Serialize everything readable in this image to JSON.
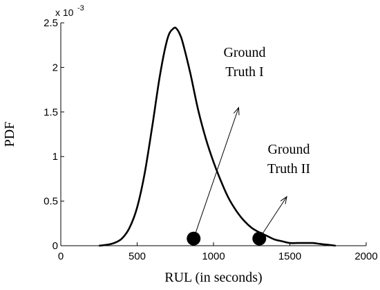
{
  "chart_data": {
    "type": "line",
    "xlabel": "RUL (in seconds)",
    "ylabel": "PDF",
    "y_scale_label": "x 10",
    "y_scale_exponent": "-3",
    "xlim": [
      0,
      2000
    ],
    "ylim": [
      0,
      2.5
    ],
    "xticks": [
      0,
      500,
      1000,
      1500,
      2000
    ],
    "yticks": [
      0,
      0.5,
      1,
      1.5,
      2,
      2.5
    ],
    "xtick_labels": [
      "0",
      "500",
      "1000",
      "1500",
      "2000"
    ],
    "ytick_labels": [
      "0",
      "0.5",
      "1",
      "1.5",
      "2",
      "2.5"
    ],
    "grid": false,
    "series": [
      {
        "x": [
          250,
          300,
          350,
          400,
          450,
          500,
          550,
          600,
          650,
          700,
          740,
          760,
          780,
          800,
          850,
          900,
          950,
          1000,
          1050,
          1100,
          1150,
          1200,
          1250,
          1300,
          1350,
          1400,
          1450,
          1500,
          1550,
          1600,
          1650,
          1700,
          1750,
          1800
        ],
        "y": [
          0.0,
          0.01,
          0.03,
          0.08,
          0.2,
          0.43,
          0.82,
          1.35,
          1.92,
          2.33,
          2.44,
          2.43,
          2.37,
          2.27,
          1.92,
          1.52,
          1.2,
          0.94,
          0.72,
          0.53,
          0.39,
          0.28,
          0.2,
          0.15,
          0.11,
          0.07,
          0.05,
          0.03,
          0.03,
          0.03,
          0.03,
          0.02,
          0.01,
          0.0
        ],
        "color": "#000000"
      }
    ],
    "points": [
      {
        "x": 870,
        "y": 0.08
      },
      {
        "x": 1300,
        "y": 0.08
      }
    ],
    "annotations": [
      {
        "lines": [
          "Ground",
          "Truth I"
        ],
        "arrow_from": [
          870,
          0.08
        ],
        "arrow_to": [
          1165,
          1.55
        ]
      },
      {
        "lines": [
          "Ground",
          "Truth II"
        ],
        "arrow_from": [
          1300,
          0.08
        ],
        "arrow_to": [
          1480,
          0.55
        ]
      }
    ]
  }
}
